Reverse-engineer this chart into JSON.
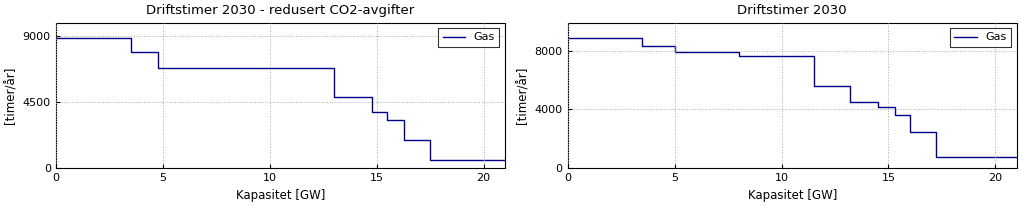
{
  "chart1": {
    "title": "Driftstimer 2030 - redusert CO2-avgifter",
    "xlabel": "Kapasitet [GW]",
    "ylabel": "[timer/år]",
    "legend_label": "Gas",
    "line_color": "#00008B",
    "xlim": [
      0,
      21
    ],
    "ylim": [
      0,
      9900
    ],
    "yticks": [
      0,
      4500,
      9000
    ],
    "xticks": [
      0,
      5,
      10,
      15,
      20
    ],
    "x": [
      0,
      3.5,
      3.5,
      4.8,
      4.8,
      13.0,
      13.0,
      14.8,
      14.8,
      15.5,
      15.5,
      16.3,
      16.3,
      17.5,
      17.5,
      21.0
    ],
    "y": [
      8850,
      8850,
      7900,
      7900,
      6800,
      6800,
      4850,
      4850,
      3800,
      3800,
      3300,
      3300,
      1900,
      1900,
      600,
      600
    ]
  },
  "chart2": {
    "title": "Driftstimer 2030",
    "xlabel": "Kapasitet [GW]",
    "ylabel": "[timer/år]",
    "legend_label": "Gas",
    "line_color": "#00008B",
    "xlim": [
      0,
      21
    ],
    "ylim": [
      0,
      9900
    ],
    "yticks": [
      0,
      4000,
      8000
    ],
    "xticks": [
      0,
      5,
      10,
      15,
      20
    ],
    "x": [
      0,
      3.5,
      3.5,
      5.0,
      5.0,
      8.0,
      8.0,
      11.5,
      11.5,
      13.2,
      13.2,
      14.5,
      14.5,
      15.3,
      15.3,
      16.0,
      16.0,
      17.2,
      17.2,
      21.0
    ],
    "y": [
      8850,
      8850,
      8300,
      8300,
      7900,
      7900,
      7600,
      7600,
      5600,
      5600,
      4500,
      4500,
      4200,
      4200,
      3600,
      3600,
      2500,
      2500,
      800,
      800
    ]
  },
  "background_color": "#ffffff",
  "grid_color": "#aaaaaa",
  "title_fontsize": 9.5,
  "label_fontsize": 8.5,
  "tick_fontsize": 8,
  "legend_fontsize": 8,
  "line_width": 1.0
}
